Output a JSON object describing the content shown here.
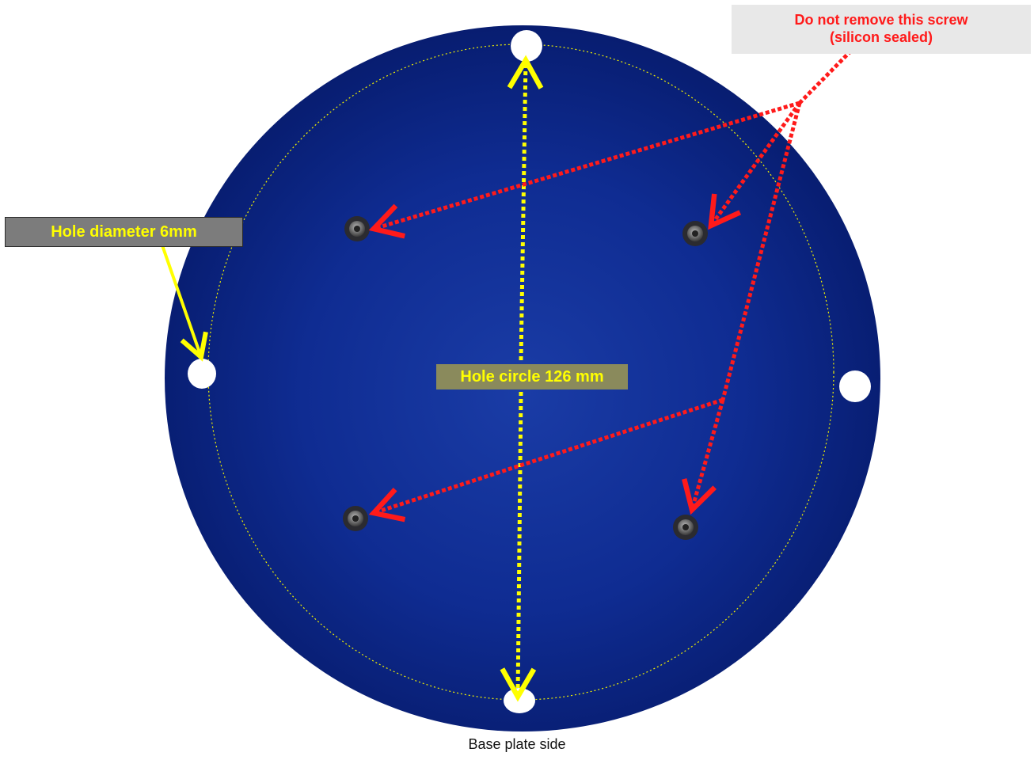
{
  "annotations": {
    "warning_line1": "Do not remove this screw",
    "warning_line2": "(silicon sealed)",
    "hole_diameter": "Hole diameter 6mm",
    "hole_circle": "Hole circle 126 mm"
  },
  "caption": "Base plate side",
  "colors": {
    "plate": "#0d2a8f",
    "plate_dark": "#061655",
    "hole_circle_line": "#f2f200",
    "warning_arrow": "#ff1a1a",
    "measure_arrow": "#ffff00"
  }
}
